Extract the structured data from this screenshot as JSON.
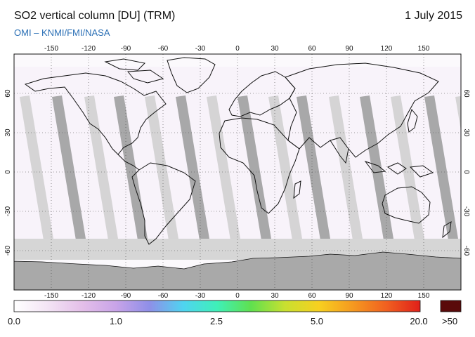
{
  "header": {
    "title": "SO2 vertical column [DU] (TRM)",
    "date": "1 July 2015",
    "source": "OMI  –  KNMI/FMI/NASA"
  },
  "map": {
    "lon_ticks": [
      "-150",
      "-120",
      "-90",
      "-60",
      "-30",
      "0",
      "30",
      "60",
      "90",
      "120",
      "150"
    ],
    "lat_ticks": [
      "60",
      "30",
      "0",
      "-30",
      "-60"
    ],
    "lon_range": [
      -180,
      180
    ],
    "lat_range": [
      -90,
      90
    ],
    "colors": {
      "land_outline": "#111111",
      "data_gap_dark": "#9a9a9a",
      "data_gap_light": "#d0d0d0",
      "antarctica": "#a8a8a8"
    }
  },
  "colorbar": {
    "labels": [
      "0.0",
      "1.0",
      "2.5",
      "5.0",
      "20.0"
    ],
    "overflow_label": ">50",
    "overflow_color": "#5a0a0a",
    "gradient": [
      "#ffffff",
      "#f3e4f5",
      "#e4bfe9",
      "#c9a4e8",
      "#8f8fe8",
      "#4fd4f0",
      "#3ff0b8",
      "#5fe04f",
      "#c8e030",
      "#f7d020",
      "#f59a20",
      "#f06020",
      "#e0201a"
    ]
  }
}
